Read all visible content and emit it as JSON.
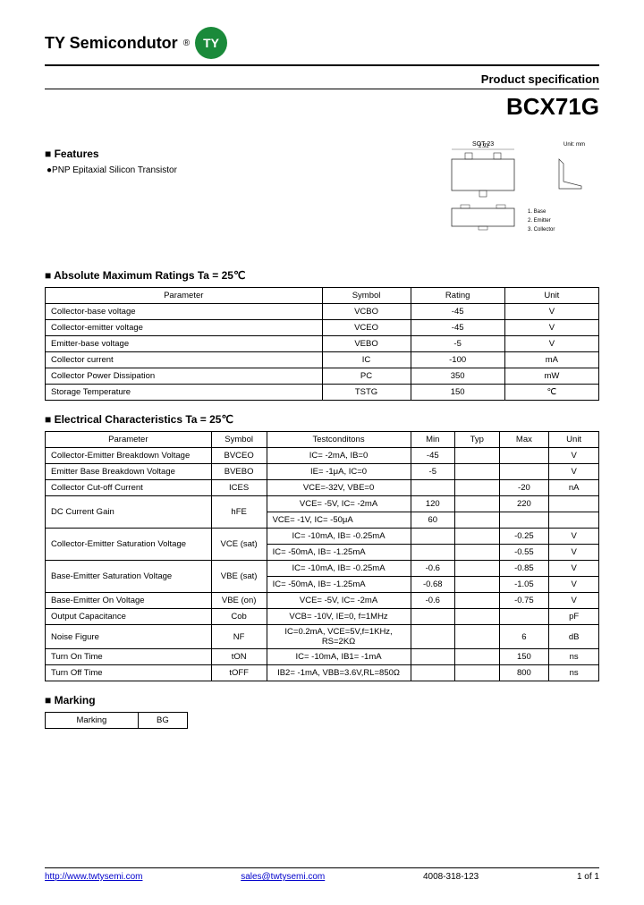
{
  "header": {
    "company": "TY Semicondutor",
    "reg": "®",
    "logo": "TY",
    "spec_label": "Product specification",
    "part_number": "BCX71G"
  },
  "features": {
    "title": "■ Features",
    "items": [
      "●PNP Epitaxial Silicon Transistor"
    ]
  },
  "package_diagram": {
    "label_top": "SOT-23",
    "label_right": "Unit: mm",
    "pins": [
      "1. Base",
      "2. Emitter",
      "3. Collector"
    ]
  },
  "ratings": {
    "title": "■ Absolute Maximum Ratings Ta = 25℃",
    "columns": [
      "Parameter",
      "Symbol",
      "Rating",
      "Unit"
    ],
    "col_widths": [
      "50%",
      "16%",
      "17%",
      "17%"
    ],
    "rows": [
      [
        "Collector-base voltage",
        "VCBO",
        "-45",
        "V"
      ],
      [
        "Collector-emitter voltage",
        "VCEO",
        "-45",
        "V"
      ],
      [
        "Emitter-base voltage",
        "VEBO",
        "-5",
        "V"
      ],
      [
        "Collector current",
        "IC",
        "-100",
        "mA"
      ],
      [
        "Collector Power Dissipation",
        "PC",
        "350",
        "mW"
      ],
      [
        "Storage Temperature",
        "TSTG",
        "150",
        "℃"
      ]
    ]
  },
  "electrical": {
    "title": "■ Electrical Characteristics Ta = 25℃",
    "columns": [
      "Parameter",
      "Symbol",
      "Testconditons",
      "Min",
      "Typ",
      "Max",
      "Unit"
    ],
    "col_widths": [
      "30%",
      "10%",
      "26%",
      "8%",
      "8%",
      "9%",
      "9%"
    ],
    "rows": [
      {
        "param": "Collector-Emitter Breakdown Voltage",
        "symbol": "BVCEO",
        "cond": "IC= -2mA, IB=0",
        "min": "-45",
        "typ": "",
        "max": "",
        "unit": "V",
        "rowspan": 1
      },
      {
        "param": "Emitter Base Breakdown Voltage",
        "symbol": "BVEBO",
        "cond": "IE= -1μA, IC=0",
        "min": "-5",
        "typ": "",
        "max": "",
        "unit": "V",
        "rowspan": 1
      },
      {
        "param": "Collector Cut-off Current",
        "symbol": "ICES",
        "cond": "VCE=-32V, VBE=0",
        "min": "",
        "typ": "",
        "max": "-20",
        "unit": "nA",
        "rowspan": 1
      },
      {
        "param": "DC Current Gain",
        "symbol": "hFE",
        "cond": "VCE= -5V, IC= -2mA",
        "min": "120",
        "typ": "",
        "max": "220",
        "unit": "",
        "rowspan": 2
      },
      {
        "param": "",
        "symbol": "",
        "cond": "VCE= -1V, IC= -50μA",
        "min": "60",
        "typ": "",
        "max": "",
        "unit": "",
        "rowspan": 0
      },
      {
        "param": "Collector-Emitter Saturation Voltage",
        "symbol": "VCE (sat)",
        "cond": "IC= -10mA, IB= -0.25mA",
        "min": "",
        "typ": "",
        "max": "-0.25",
        "unit": "V",
        "rowspan": 2
      },
      {
        "param": "",
        "symbol": "",
        "cond": "IC= -50mA, IB= -1.25mA",
        "min": "",
        "typ": "",
        "max": "-0.55",
        "unit": "V",
        "rowspan": 0
      },
      {
        "param": "Base-Emitter Saturation Voltage",
        "symbol": "VBE (sat)",
        "cond": "IC= -10mA, IB= -0.25mA",
        "min": "-0.6",
        "typ": "",
        "max": "-0.85",
        "unit": "V",
        "rowspan": 2
      },
      {
        "param": "",
        "symbol": "",
        "cond": "IC= -50mA, IB= -1.25mA",
        "min": "-0.68",
        "typ": "",
        "max": "-1.05",
        "unit": "V",
        "rowspan": 0
      },
      {
        "param": "Base-Emitter On Voltage",
        "symbol": "VBE (on)",
        "cond": "VCE= -5V, IC= -2mA",
        "min": "-0.6",
        "typ": "",
        "max": "-0.75",
        "unit": "V",
        "rowspan": 1
      },
      {
        "param": "Output Capacitance",
        "symbol": "Cob",
        "cond": "VCB= -10V, IE=0, f=1MHz",
        "min": "",
        "typ": "",
        "max": "",
        "unit": "pF",
        "rowspan": 1
      },
      {
        "param": "Noise Figure",
        "symbol": "NF",
        "cond": "IC=0.2mA, VCE=5V,f=1KHz, RS=2KΩ",
        "min": "",
        "typ": "",
        "max": "6",
        "unit": "dB",
        "rowspan": 1
      },
      {
        "param": "Turn On Time",
        "symbol": "tON",
        "cond": "IC= -10mA, IB1= -1mA",
        "min": "",
        "typ": "",
        "max": "150",
        "unit": "ns",
        "rowspan": 1
      },
      {
        "param": "Turn Off Time",
        "symbol": "tOFF",
        "cond": "IB2= -1mA, VBB=3.6V,RL=850Ω",
        "min": "",
        "typ": "",
        "max": "800",
        "unit": "ns",
        "rowspan": 1
      }
    ]
  },
  "marking": {
    "title": "■ Marking",
    "label": "Marking",
    "code": "BG"
  },
  "footer": {
    "url": "http://www.twtysemi.com",
    "email": "sales@twtysemi.com",
    "phone": "4008-318-123",
    "page": "1 of 1"
  },
  "colors": {
    "logo_bg": "#1a8a3a",
    "link": "#0000cc",
    "border": "#000000",
    "text": "#000000"
  }
}
